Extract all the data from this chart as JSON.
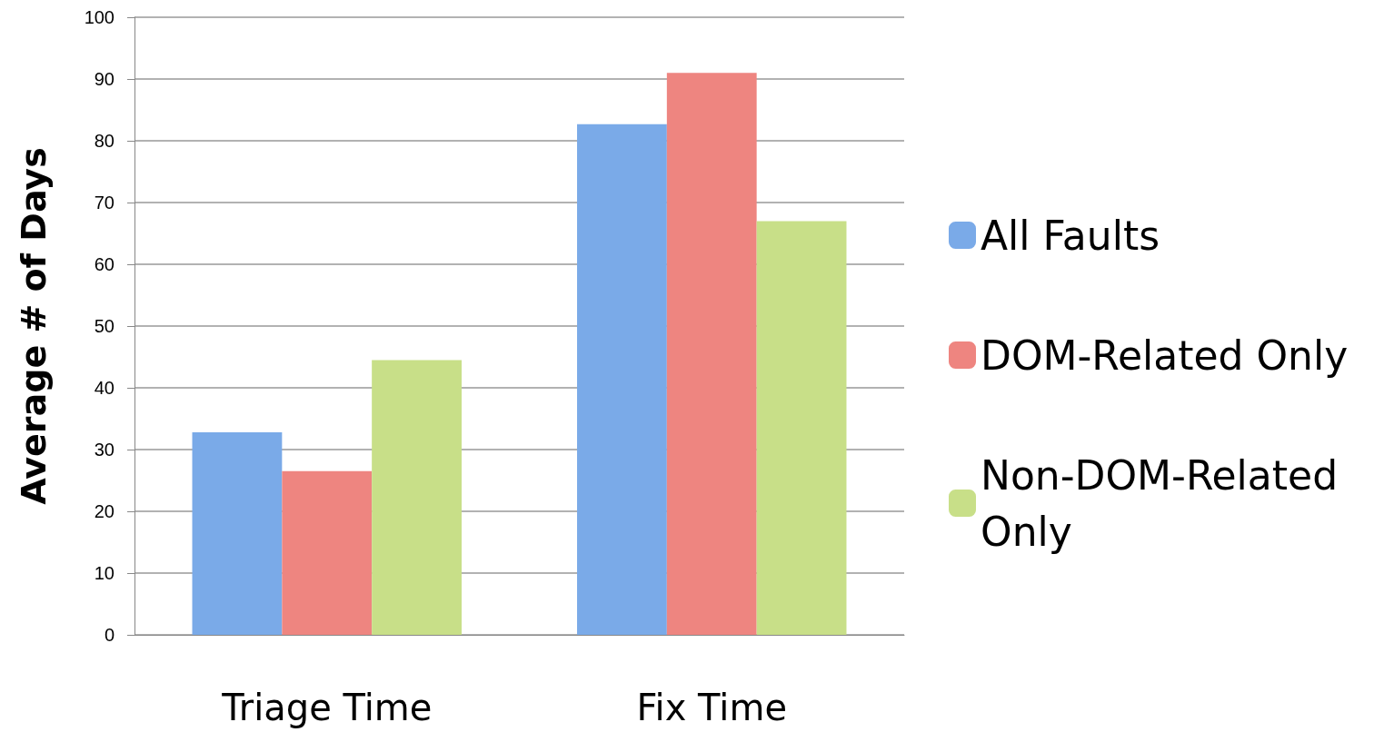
{
  "chart_data": {
    "type": "bar",
    "ylabel": "Average # of Days",
    "categories": [
      "Triage Time",
      "Fix Time"
    ],
    "series": [
      {
        "name": "All Faults",
        "color": "#7aaae8",
        "values": [
          32.8,
          82.7
        ]
      },
      {
        "name": "DOM-Related Only",
        "color": "#ee8580",
        "values": [
          26.5,
          91
        ]
      },
      {
        "name": "Non-DOM-Related Only",
        "color": "#c8df88",
        "values": [
          44.5,
          67
        ]
      }
    ],
    "ylim": [
      0,
      100
    ],
    "yticks": [
      0,
      10,
      20,
      30,
      40,
      50,
      60,
      70,
      80,
      90,
      100
    ],
    "grid": "y",
    "legend": "right"
  }
}
